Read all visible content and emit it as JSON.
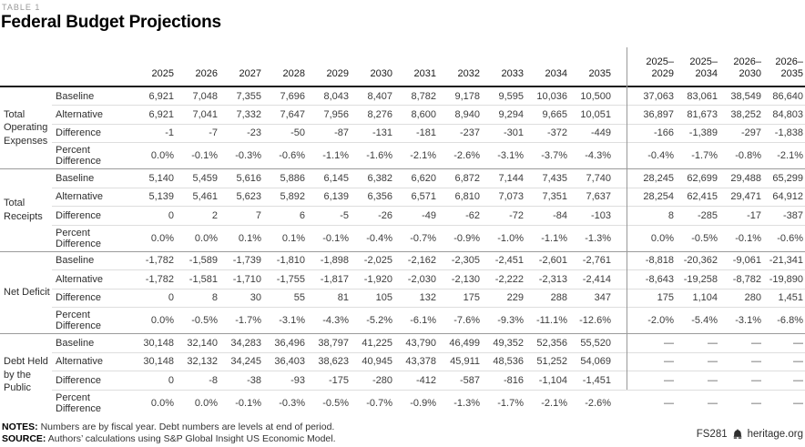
{
  "kicker": "TABLE 1",
  "title": "Federal Budget Projections",
  "table": {
    "year_columns": [
      "2025",
      "2026",
      "2027",
      "2028",
      "2029",
      "2030",
      "2031",
      "2032",
      "2033",
      "2034",
      "2035"
    ],
    "period_columns": [
      "2025–\n2029",
      "2025–\n2034",
      "2026–\n2030",
      "2026–\n2035"
    ],
    "groups": [
      {
        "label": "Total Operating Expenses",
        "rows": [
          {
            "label": "Baseline",
            "values": [
              "6,921",
              "7,048",
              "7,355",
              "7,696",
              "8,043",
              "8,407",
              "8,782",
              "9,178",
              "9,595",
              "10,036",
              "10,500",
              "37,063",
              "83,061",
              "38,549",
              "86,640"
            ]
          },
          {
            "label": "Alternative",
            "values": [
              "6,921",
              "7,041",
              "7,332",
              "7,647",
              "7,956",
              "8,276",
              "8,600",
              "8,940",
              "9,294",
              "9,665",
              "10,051",
              "36,897",
              "81,673",
              "38,252",
              "84,803"
            ]
          },
          {
            "label": "Difference",
            "values": [
              "-1",
              "-7",
              "-23",
              "-50",
              "-87",
              "-131",
              "-181",
              "-237",
              "-301",
              "-372",
              "-449",
              "-166",
              "-1,389",
              "-297",
              "-1,838"
            ]
          },
          {
            "label": "Percent Difference",
            "values": [
              "0.0%",
              "-0.1%",
              "-0.3%",
              "-0.6%",
              "-1.1%",
              "-1.6%",
              "-2.1%",
              "-2.6%",
              "-3.1%",
              "-3.7%",
              "-4.3%",
              "-0.4%",
              "-1.7%",
              "-0.8%",
              "-2.1%"
            ]
          }
        ]
      },
      {
        "label": "Total Receipts",
        "rows": [
          {
            "label": "Baseline",
            "values": [
              "5,140",
              "5,459",
              "5,616",
              "5,886",
              "6,145",
              "6,382",
              "6,620",
              "6,872",
              "7,144",
              "7,435",
              "7,740",
              "28,245",
              "62,699",
              "29,488",
              "65,299"
            ]
          },
          {
            "label": "Alternative",
            "values": [
              "5,139",
              "5,461",
              "5,623",
              "5,892",
              "6,139",
              "6,356",
              "6,571",
              "6,810",
              "7,073",
              "7,351",
              "7,637",
              "28,254",
              "62,415",
              "29,471",
              "64,912"
            ]
          },
          {
            "label": "Difference",
            "values": [
              "0",
              "2",
              "7",
              "6",
              "-5",
              "-26",
              "-49",
              "-62",
              "-72",
              "-84",
              "-103",
              "8",
              "-285",
              "-17",
              "-387"
            ]
          },
          {
            "label": "Percent Difference",
            "values": [
              "0.0%",
              "0.0%",
              "0.1%",
              "0.1%",
              "-0.1%",
              "-0.4%",
              "-0.7%",
              "-0.9%",
              "-1.0%",
              "-1.1%",
              "-1.3%",
              "0.0%",
              "-0.5%",
              "-0.1%",
              "-0.6%"
            ]
          }
        ]
      },
      {
        "label": "Net Deficit",
        "rows": [
          {
            "label": "Baseline",
            "values": [
              "-1,782",
              "-1,589",
              "-1,739",
              "-1,810",
              "-1,898",
              "-2,025",
              "-2,162",
              "-2,305",
              "-2,451",
              "-2,601",
              "-2,761",
              "-8,818",
              "-20,362",
              "-9,061",
              "-21,341"
            ]
          },
          {
            "label": "Alternative",
            "values": [
              "-1,782",
              "-1,581",
              "-1,710",
              "-1,755",
              "-1,817",
              "-1,920",
              "-2,030",
              "-2,130",
              "-2,222",
              "-2,313",
              "-2,414",
              "-8,643",
              "-19,258",
              "-8,782",
              "-19,890"
            ]
          },
          {
            "label": "Difference",
            "values": [
              "0",
              "8",
              "30",
              "55",
              "81",
              "105",
              "132",
              "175",
              "229",
              "288",
              "347",
              "175",
              "1,104",
              "280",
              "1,451"
            ]
          },
          {
            "label": "Percent Difference",
            "values": [
              "0.0%",
              "-0.5%",
              "-1.7%",
              "-3.1%",
              "-4.3%",
              "-5.2%",
              "-6.1%",
              "-7.6%",
              "-9.3%",
              "-11.1%",
              "-12.6%",
              "-2.0%",
              "-5.4%",
              "-3.1%",
              "-6.8%"
            ]
          }
        ]
      },
      {
        "label": "Debt Held by the Public",
        "rows": [
          {
            "label": "Baseline",
            "values": [
              "30,148",
              "32,140",
              "34,283",
              "36,496",
              "38,797",
              "41,225",
              "43,790",
              "46,499",
              "49,352",
              "52,356",
              "55,520",
              "—",
              "—",
              "—",
              "—"
            ]
          },
          {
            "label": "Alternative",
            "values": [
              "30,148",
              "32,132",
              "34,245",
              "36,403",
              "38,623",
              "40,945",
              "43,378",
              "45,911",
              "48,536",
              "51,252",
              "54,069",
              "—",
              "—",
              "—",
              "—"
            ]
          },
          {
            "label": "Difference",
            "values": [
              "0",
              "-8",
              "-38",
              "-93",
              "-175",
              "-280",
              "-412",
              "-587",
              "-816",
              "-1,104",
              "-1,451",
              "—",
              "—",
              "—",
              "—"
            ]
          },
          {
            "label": "Percent Difference",
            "values": [
              "0.0%",
              "0.0%",
              "-0.1%",
              "-0.3%",
              "-0.5%",
              "-0.7%",
              "-0.9%",
              "-1.3%",
              "-1.7%",
              "-2.1%",
              "-2.6%",
              "—",
              "—",
              "—",
              "—"
            ]
          }
        ]
      }
    ]
  },
  "footer": {
    "notes_label": "NOTES:",
    "notes_text": "Numbers are by fiscal year. Debt numbers are levels at end of period.",
    "source_label": "SOURCE:",
    "source_text": "Authors’ calculations using S&P Global Insight US Economic Model.",
    "doc_id": "FS281",
    "site": "heritage.org",
    "bell_icon": "liberty-bell-icon"
  }
}
